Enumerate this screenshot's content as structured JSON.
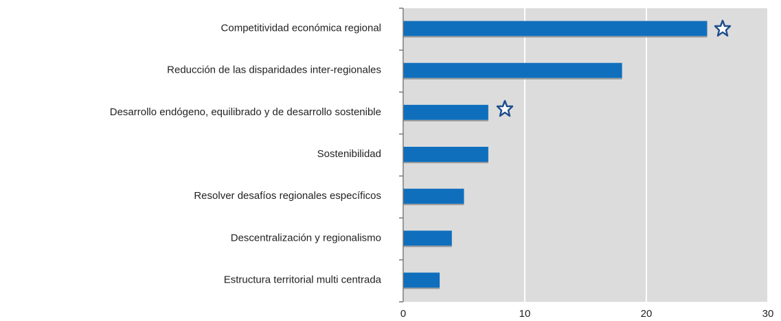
{
  "chart_data": {
    "type": "bar",
    "orientation": "horizontal",
    "categories": [
      "Competitividad económica regional",
      "Reducción de las disparidades inter-regionales",
      "Desarrollo endógeno, equilibrado y de desarrollo sostenible",
      "Sostenibilidad",
      "Resolver desafíos regionales específicos",
      "Descentralización y regionalismo",
      "Estructura territorial multi centrada"
    ],
    "values": [
      25,
      18,
      7,
      7,
      5,
      4,
      3
    ],
    "color": "#0f6fbd",
    "xlim": [
      0,
      30
    ],
    "xticks": [
      0,
      10,
      20,
      30
    ],
    "grid": true
  }
}
